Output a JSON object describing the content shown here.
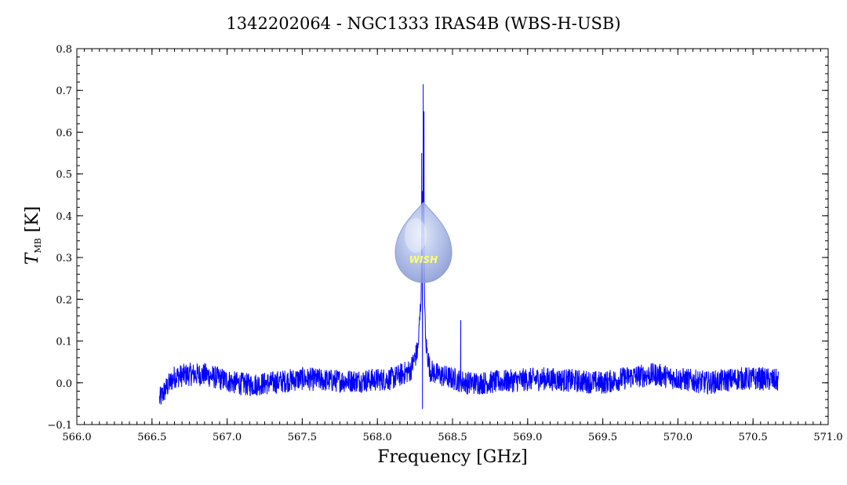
{
  "chart_data": {
    "type": "line",
    "title": "1342202064 - NGC1333 IRAS4B (WBS-H-USB)",
    "xlabel": "Frequency [GHz]",
    "ylabel_main": "T",
    "ylabel_sub": "MB",
    "ylabel_unit": "[K]",
    "xlim": [
      566.0,
      571.0
    ],
    "ylim": [
      -0.1,
      0.8
    ],
    "x_ticks": [
      "566.0",
      "566.5",
      "567.0",
      "567.5",
      "568.0",
      "568.5",
      "569.0",
      "569.5",
      "570.0",
      "570.5",
      "571.0"
    ],
    "y_ticks": [
      "−0.1",
      "0.0",
      "0.1",
      "0.2",
      "0.3",
      "0.4",
      "0.5",
      "0.6",
      "0.7",
      "0.8"
    ],
    "grid": false,
    "logo_text": "WISH",
    "series": [
      {
        "color": "#0000ff",
        "x_start": 566.55,
        "x_end": 570.67,
        "baseline_points": [
          [
            566.55,
            -0.04
          ],
          [
            566.6,
            -0.01
          ],
          [
            566.65,
            0.015
          ],
          [
            566.75,
            0.02
          ],
          [
            566.85,
            0.02
          ],
          [
            566.95,
            0.01
          ],
          [
            567.05,
            0.0
          ],
          [
            567.15,
            -0.005
          ],
          [
            567.3,
            0.0
          ],
          [
            567.5,
            0.01
          ],
          [
            567.7,
            0.005
          ],
          [
            567.9,
            0.005
          ],
          [
            568.1,
            0.01
          ],
          [
            568.22,
            0.03
          ],
          [
            568.27,
            0.08
          ],
          [
            568.29,
            0.2
          ],
          [
            568.3,
            0.45
          ],
          [
            568.31,
            0.3
          ],
          [
            568.32,
            0.1
          ],
          [
            568.35,
            0.03
          ],
          [
            568.4,
            0.02
          ],
          [
            568.5,
            0.01
          ],
          [
            568.6,
            0.0
          ],
          [
            568.7,
            0.0
          ],
          [
            568.9,
            0.005
          ],
          [
            569.1,
            0.01
          ],
          [
            569.3,
            0.005
          ],
          [
            569.5,
            0.0
          ],
          [
            569.7,
            0.015
          ],
          [
            569.85,
            0.02
          ],
          [
            570.0,
            0.01
          ],
          [
            570.2,
            0.0
          ],
          [
            570.4,
            0.01
          ],
          [
            570.55,
            0.01
          ],
          [
            570.67,
            0.005
          ]
        ],
        "spikes": [
          {
            "x": 568.305,
            "y": 0.715
          },
          {
            "x": 568.31,
            "y": 0.65
          },
          {
            "x": 568.295,
            "y": 0.55
          },
          {
            "x": 568.3,
            "y": -0.063
          },
          {
            "x": 568.555,
            "y": 0.15
          }
        ],
        "noise_amplitude": 0.035
      }
    ]
  }
}
